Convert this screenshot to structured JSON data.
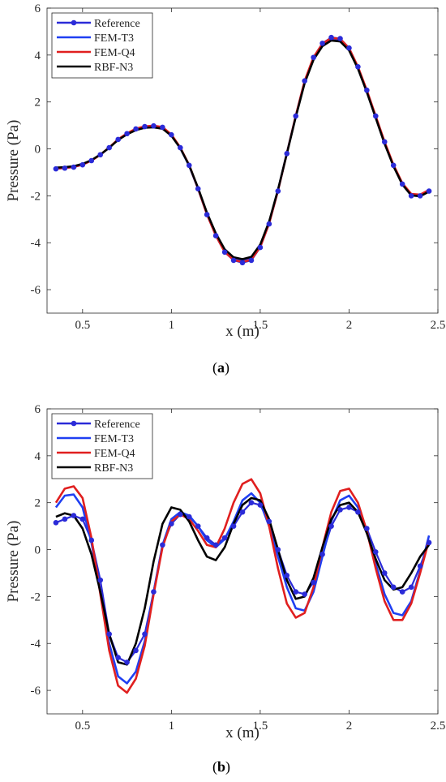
{
  "colors": {
    "reference": "#2b2bd8",
    "fem_t3": "#1f3ff2",
    "fem_q4": "#e01f1f",
    "rbf_n3": "#000000"
  },
  "chart_data": [
    {
      "type": "line",
      "caption": "a",
      "xlabel": "x (m)",
      "ylabel": "Pressure (Pa)",
      "xlim": [
        0.3,
        2.5
      ],
      "ylim": [
        -7,
        6
      ],
      "xticks": [
        0.5,
        1,
        1.5,
        2,
        2.5
      ],
      "xtick_labels": [
        "0.5",
        "1",
        "1.5",
        "2",
        "2.5"
      ],
      "yticks": [
        -6,
        -4,
        -2,
        0,
        2,
        4,
        6
      ],
      "ytick_labels": [
        "-6",
        "-4",
        "-2",
        "0",
        "2",
        "4",
        "6"
      ],
      "grid": false,
      "legend": "top-left",
      "series": [
        {
          "name": "Reference",
          "color": "#2b2bd8",
          "markers": true,
          "x": [
            0.35,
            0.4,
            0.45,
            0.5,
            0.55,
            0.6,
            0.65,
            0.7,
            0.75,
            0.8,
            0.85,
            0.9,
            0.95,
            1.0,
            1.05,
            1.1,
            1.15,
            1.2,
            1.25,
            1.3,
            1.35,
            1.4,
            1.45,
            1.5,
            1.55,
            1.6,
            1.65,
            1.7,
            1.75,
            1.8,
            1.85,
            1.9,
            1.95,
            2.0,
            2.05,
            2.1,
            2.15,
            2.2,
            2.25,
            2.3,
            2.35,
            2.4,
            2.45
          ],
          "y": [
            -0.85,
            -0.82,
            -0.78,
            -0.68,
            -0.5,
            -0.25,
            0.05,
            0.4,
            0.65,
            0.85,
            0.95,
            0.98,
            0.92,
            0.6,
            0.05,
            -0.7,
            -1.7,
            -2.8,
            -3.7,
            -4.4,
            -4.75,
            -4.85,
            -4.75,
            -4.2,
            -3.2,
            -1.8,
            -0.2,
            1.4,
            2.9,
            3.9,
            4.5,
            4.75,
            4.7,
            4.3,
            3.5,
            2.5,
            1.4,
            0.3,
            -0.7,
            -1.5,
            -2.0,
            -2.0,
            -1.8
          ]
        },
        {
          "name": "FEM-T3",
          "color": "#1f3ff2",
          "markers": false,
          "x": [
            0.35,
            0.4,
            0.45,
            0.5,
            0.55,
            0.6,
            0.65,
            0.7,
            0.75,
            0.8,
            0.85,
            0.9,
            0.95,
            1.0,
            1.05,
            1.1,
            1.15,
            1.2,
            1.25,
            1.3,
            1.35,
            1.4,
            1.45,
            1.5,
            1.55,
            1.6,
            1.65,
            1.7,
            1.75,
            1.8,
            1.85,
            1.9,
            1.95,
            2.0,
            2.05,
            2.1,
            2.15,
            2.2,
            2.25,
            2.3,
            2.35,
            2.4,
            2.45
          ],
          "y": [
            -0.82,
            -0.8,
            -0.76,
            -0.66,
            -0.49,
            -0.25,
            0.05,
            0.4,
            0.64,
            0.84,
            0.94,
            0.97,
            0.9,
            0.58,
            0.03,
            -0.72,
            -1.7,
            -2.78,
            -3.68,
            -4.37,
            -4.7,
            -4.78,
            -4.68,
            -4.15,
            -3.15,
            -1.76,
            -0.18,
            1.4,
            2.88,
            3.88,
            4.45,
            4.7,
            4.65,
            4.25,
            3.45,
            2.45,
            1.35,
            0.25,
            -0.72,
            -1.5,
            -1.95,
            -1.98,
            -1.78
          ]
        },
        {
          "name": "FEM-Q4",
          "color": "#e01f1f",
          "markers": false,
          "x": [
            0.35,
            0.4,
            0.45,
            0.5,
            0.55,
            0.6,
            0.65,
            0.7,
            0.75,
            0.8,
            0.85,
            0.9,
            0.95,
            1.0,
            1.05,
            1.1,
            1.15,
            1.2,
            1.25,
            1.3,
            1.35,
            1.4,
            1.45,
            1.5,
            1.55,
            1.6,
            1.65,
            1.7,
            1.75,
            1.8,
            1.85,
            1.9,
            1.95,
            2.0,
            2.05,
            2.1,
            2.15,
            2.2,
            2.25,
            2.3,
            2.35,
            2.4,
            2.45
          ],
          "y": [
            -0.84,
            -0.81,
            -0.77,
            -0.67,
            -0.5,
            -0.25,
            0.06,
            0.41,
            0.66,
            0.86,
            0.96,
            0.99,
            0.93,
            0.61,
            0.06,
            -0.69,
            -1.69,
            -2.79,
            -3.69,
            -4.39,
            -4.73,
            -4.82,
            -4.72,
            -4.18,
            -3.18,
            -1.78,
            -0.19,
            1.41,
            2.9,
            3.91,
            4.48,
            4.73,
            4.69,
            4.29,
            3.5,
            2.5,
            1.4,
            0.3,
            -0.68,
            -1.46,
            -1.92,
            -1.95,
            -1.75
          ]
        },
        {
          "name": "RBF-N3",
          "color": "#000000",
          "markers": false,
          "x": [
            0.35,
            0.4,
            0.45,
            0.5,
            0.55,
            0.6,
            0.65,
            0.7,
            0.75,
            0.8,
            0.85,
            0.9,
            0.95,
            1.0,
            1.05,
            1.1,
            1.15,
            1.2,
            1.25,
            1.3,
            1.35,
            1.4,
            1.45,
            1.5,
            1.55,
            1.6,
            1.65,
            1.7,
            1.75,
            1.8,
            1.85,
            1.9,
            1.95,
            2.0,
            2.05,
            2.1,
            2.15,
            2.2,
            2.25,
            2.3,
            2.35,
            2.4,
            2.45
          ],
          "y": [
            -0.8,
            -0.78,
            -0.74,
            -0.64,
            -0.48,
            -0.24,
            0.05,
            0.38,
            0.62,
            0.8,
            0.9,
            0.92,
            0.86,
            0.56,
            0.03,
            -0.7,
            -1.66,
            -2.72,
            -3.6,
            -4.28,
            -4.62,
            -4.7,
            -4.6,
            -4.08,
            -3.1,
            -1.74,
            -0.2,
            1.36,
            2.8,
            3.8,
            4.38,
            4.62,
            4.58,
            4.2,
            3.42,
            2.42,
            1.32,
            0.22,
            -0.74,
            -1.52,
            -1.98,
            -2.02,
            -1.82
          ]
        }
      ]
    },
    {
      "type": "line",
      "caption": "b",
      "xlabel": "x (m)",
      "ylabel": "Pressure (Pa)",
      "xlim": [
        0.3,
        2.5
      ],
      "ylim": [
        -7,
        6
      ],
      "xticks": [
        0.5,
        1,
        1.5,
        2,
        2.5
      ],
      "xtick_labels": [
        "0.5",
        "1",
        "1.5",
        "2",
        "2.5"
      ],
      "yticks": [
        -6,
        -4,
        -2,
        0,
        2,
        4,
        6
      ],
      "ytick_labels": [
        "-6",
        "-4",
        "-2",
        "0",
        "2",
        "4",
        "6"
      ],
      "grid": false,
      "legend": "top-left",
      "series": [
        {
          "name": "Reference",
          "color": "#2b2bd8",
          "markers": true,
          "x": [
            0.35,
            0.4,
            0.45,
            0.5,
            0.55,
            0.6,
            0.65,
            0.7,
            0.75,
            0.8,
            0.85,
            0.9,
            0.95,
            1.0,
            1.05,
            1.1,
            1.15,
            1.2,
            1.25,
            1.3,
            1.35,
            1.4,
            1.45,
            1.5,
            1.55,
            1.6,
            1.65,
            1.7,
            1.75,
            1.8,
            1.85,
            1.9,
            1.95,
            2.0,
            2.05,
            2.1,
            2.15,
            2.2,
            2.25,
            2.3,
            2.35,
            2.4,
            2.45
          ],
          "y": [
            1.15,
            1.3,
            1.45,
            1.3,
            0.4,
            -1.3,
            -3.6,
            -4.6,
            -4.8,
            -4.3,
            -3.6,
            -1.8,
            0.2,
            1.1,
            1.5,
            1.4,
            1.0,
            0.5,
            0.2,
            0.5,
            1.0,
            1.6,
            2.0,
            1.9,
            1.2,
            0.0,
            -1.1,
            -1.8,
            -1.9,
            -1.4,
            -0.2,
            1.0,
            1.7,
            1.8,
            1.6,
            0.9,
            -0.1,
            -1.0,
            -1.6,
            -1.8,
            -1.6,
            -0.7,
            0.3
          ]
        },
        {
          "name": "FEM-T3",
          "color": "#1f3ff2",
          "markers": false,
          "x": [
            0.35,
            0.4,
            0.45,
            0.5,
            0.55,
            0.6,
            0.65,
            0.7,
            0.75,
            0.8,
            0.85,
            0.9,
            0.95,
            1.0,
            1.05,
            1.1,
            1.15,
            1.2,
            1.25,
            1.3,
            1.35,
            1.4,
            1.45,
            1.5,
            1.55,
            1.6,
            1.65,
            1.7,
            1.75,
            1.8,
            1.85,
            1.9,
            1.95,
            2.0,
            2.05,
            2.1,
            2.15,
            2.2,
            2.25,
            2.3,
            2.35,
            2.4,
            2.45
          ],
          "y": [
            1.8,
            2.3,
            2.35,
            1.8,
            0.3,
            -1.8,
            -4.0,
            -5.4,
            -5.7,
            -5.2,
            -3.9,
            -1.8,
            0.2,
            1.3,
            1.6,
            1.45,
            1.0,
            0.4,
            0.1,
            0.45,
            1.2,
            2.1,
            2.4,
            2.0,
            1.0,
            -0.3,
            -1.6,
            -2.5,
            -2.6,
            -1.8,
            -0.3,
            1.2,
            2.1,
            2.3,
            1.8,
            0.8,
            -0.6,
            -1.9,
            -2.7,
            -2.8,
            -2.2,
            -0.9,
            0.6
          ]
        },
        {
          "name": "FEM-Q4",
          "color": "#e01f1f",
          "markers": false,
          "x": [
            0.35,
            0.4,
            0.45,
            0.5,
            0.55,
            0.6,
            0.65,
            0.7,
            0.75,
            0.8,
            0.85,
            0.9,
            0.95,
            1.0,
            1.05,
            1.1,
            1.15,
            1.2,
            1.25,
            1.3,
            1.35,
            1.4,
            1.45,
            1.5,
            1.55,
            1.6,
            1.65,
            1.7,
            1.75,
            1.8,
            1.85,
            1.9,
            1.95,
            2.0,
            2.05,
            2.1,
            2.15,
            2.2,
            2.25,
            2.3,
            2.35,
            2.4,
            2.45
          ],
          "y": [
            2.0,
            2.6,
            2.7,
            2.2,
            0.5,
            -1.9,
            -4.3,
            -5.8,
            -6.1,
            -5.5,
            -4.1,
            -1.9,
            0.1,
            1.2,
            1.5,
            1.3,
            0.8,
            0.2,
            0.1,
            0.9,
            2.0,
            2.8,
            3.0,
            2.4,
            1.0,
            -0.8,
            -2.3,
            -2.9,
            -2.7,
            -1.6,
            0.1,
            1.6,
            2.5,
            2.6,
            2.0,
            0.8,
            -0.8,
            -2.2,
            -3.0,
            -3.0,
            -2.3,
            -1.0,
            0.4
          ]
        },
        {
          "name": "RBF-N3",
          "color": "#000000",
          "markers": false,
          "x": [
            0.35,
            0.4,
            0.45,
            0.5,
            0.55,
            0.6,
            0.65,
            0.7,
            0.75,
            0.8,
            0.85,
            0.9,
            0.95,
            1.0,
            1.05,
            1.1,
            1.15,
            1.2,
            1.25,
            1.3,
            1.35,
            1.4,
            1.45,
            1.5,
            1.55,
            1.6,
            1.65,
            1.7,
            1.75,
            1.8,
            1.85,
            1.9,
            1.95,
            2.0,
            2.05,
            2.1,
            2.15,
            2.2,
            2.25,
            2.3,
            2.35,
            2.4,
            2.45
          ],
          "y": [
            1.4,
            1.55,
            1.45,
            0.9,
            -0.2,
            -1.8,
            -3.6,
            -4.8,
            -4.9,
            -4.0,
            -2.5,
            -0.5,
            1.1,
            1.8,
            1.7,
            1.2,
            0.4,
            -0.3,
            -0.45,
            0.1,
            1.1,
            1.9,
            2.2,
            2.1,
            1.3,
            0.0,
            -1.3,
            -2.1,
            -2.0,
            -1.2,
            0.1,
            1.3,
            1.9,
            2.0,
            1.6,
            0.7,
            -0.4,
            -1.3,
            -1.7,
            -1.6,
            -1.0,
            -0.3,
            0.2
          ]
        }
      ]
    }
  ]
}
